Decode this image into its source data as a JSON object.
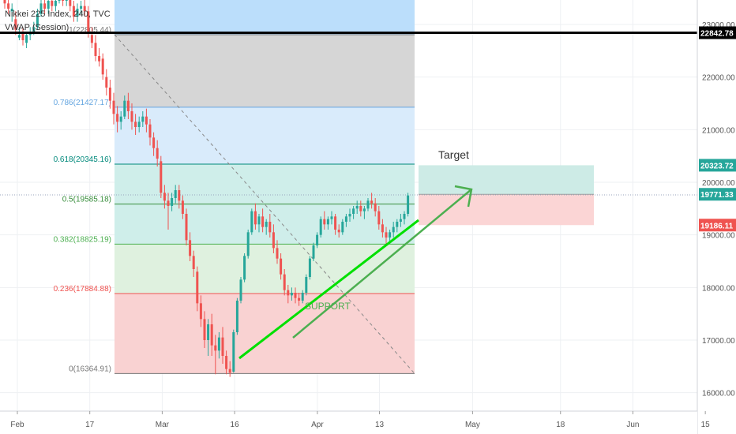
{
  "header": {
    "symbol_line": "Nikkei 225 Index, 240, TVC",
    "indicator": "VWAP (Session)"
  },
  "colors": {
    "up": "#26a69a",
    "down": "#ef5350",
    "support_line": "#00e000",
    "arrow": "#4caf50",
    "resistance_line": "#000000",
    "fib_zone_top": "#bbdefb",
    "fib_zone_grey": "#d6d6d6",
    "fib_zone_blue": "#d9ebfb",
    "fib_zone_teal": "#cfeeea",
    "fib_zone_green": "#dff1df",
    "fib_zone_red": "#f9d2d2",
    "target_box": "#cdebe6",
    "stop_box": "#fbd5d5"
  },
  "chart_data": {
    "type": "candlestick",
    "y_axis": {
      "range": [
        15650,
        23450
      ],
      "ticks": [
        16000,
        17000,
        18000,
        19000,
        20000,
        21000,
        22000,
        23000
      ],
      "tick_labels": [
        "16000.00",
        "17000.00",
        "18000.00",
        "19000.00",
        "20000.00",
        "21000.00",
        "22000.00",
        "23000.00"
      ]
    },
    "x_axis": {
      "tick_labels": [
        "Feb",
        "17",
        "Mar",
        "16",
        "Apr",
        "13",
        "May",
        "18",
        "Jun",
        "15"
      ],
      "tick_dates": [
        "2020-02-03",
        "2020-02-17",
        "2020-03-02",
        "2020-03-16",
        "2020-04-01",
        "2020-04-13",
        "2020-05-01",
        "2020-05-18",
        "2020-06-01",
        "2020-06-15"
      ]
    },
    "price_labels": [
      {
        "text": "22842.78",
        "value": 22842.78,
        "style": "resistance"
      },
      {
        "text": "20323.72",
        "value": 20323.72,
        "style": "target"
      },
      {
        "text": "19771.33",
        "value": 19771.33,
        "style": "entry"
      },
      {
        "text": "19186.11",
        "value": 19186.11,
        "style": "stop"
      }
    ],
    "horizontal_line": {
      "value": 22842.78
    },
    "fibonacci": [
      {
        "label": "1(22805.44)",
        "ratio": 1,
        "value": 22805.44
      },
      {
        "label": "0.786(21427.17)",
        "ratio": 0.786,
        "value": 21427.17
      },
      {
        "label": "0.618(20345.16)",
        "ratio": 0.618,
        "value": 20345.16
      },
      {
        "label": "0.5(19585.18)",
        "ratio": 0.5,
        "value": 19585.18
      },
      {
        "label": "0.382(18825.19)",
        "ratio": 0.382,
        "value": 18825.19
      },
      {
        "label": "0.236(17884.88)",
        "ratio": 0.236,
        "value": 17884.88
      },
      {
        "label": "0(16364.91)",
        "ratio": 0,
        "value": 16364.91
      }
    ],
    "annotations": [
      {
        "text": "Target"
      },
      {
        "text": "SUPPORT"
      }
    ],
    "candles": [
      [
        23500,
        23650,
        23400,
        23300
      ],
      [
        23400,
        23700,
        23300,
        23200
      ],
      [
        23250,
        23400,
        23300,
        23050
      ],
      [
        23100,
        23250,
        22900,
        22800
      ],
      [
        22750,
        22950,
        22800,
        22700
      ],
      [
        22850,
        22950,
        22700,
        22600
      ],
      [
        22650,
        22850,
        22800,
        22550
      ],
      [
        22800,
        22950,
        22850,
        22700
      ],
      [
        22850,
        23050,
        22950,
        22800
      ],
      [
        22950,
        23300,
        23200,
        22900
      ],
      [
        23200,
        23500,
        23400,
        23150
      ],
      [
        23400,
        23550,
        23300,
        23200
      ],
      [
        23300,
        23500,
        23450,
        23200
      ],
      [
        23450,
        23600,
        23350,
        23250
      ],
      [
        23350,
        23500,
        23450,
        23250
      ],
      [
        23450,
        23650,
        23550,
        23400
      ],
      [
        23550,
        23700,
        23450,
        23350
      ],
      [
        23450,
        23600,
        23500,
        23350
      ],
      [
        23500,
        23600,
        23350,
        23250
      ],
      [
        23350,
        23450,
        23150,
        23050
      ],
      [
        23150,
        23400,
        23300,
        23050
      ],
      [
        23300,
        23450,
        23350,
        23200
      ],
      [
        23350,
        23500,
        23250,
        23150
      ],
      [
        23250,
        23350,
        22850,
        22750
      ],
      [
        22800,
        22950,
        22650,
        22550
      ],
      [
        22650,
        22800,
        22400,
        22300
      ],
      [
        22400,
        22550,
        22300,
        22200
      ],
      [
        22350,
        22450,
        22050,
        21950
      ],
      [
        22000,
        22150,
        21800,
        21650
      ],
      [
        21800,
        21950,
        21550,
        21400
      ],
      [
        21550,
        21700,
        21300,
        21100
      ],
      [
        21300,
        21450,
        21150,
        20950
      ],
      [
        21150,
        21350,
        21250,
        21000
      ],
      [
        21250,
        21650,
        21550,
        21200
      ],
      [
        21550,
        21700,
        21350,
        21200
      ],
      [
        21350,
        21500,
        21150,
        21000
      ],
      [
        21150,
        21300,
        21050,
        20900
      ],
      [
        21050,
        21250,
        21150,
        20950
      ],
      [
        21150,
        21350,
        21250,
        21050
      ],
      [
        21250,
        21400,
        21100,
        20950
      ],
      [
        21100,
        21200,
        20850,
        20700
      ],
      [
        20850,
        20950,
        20650,
        20500
      ],
      [
        20650,
        20800,
        20450,
        20300
      ],
      [
        20400,
        20500,
        19800,
        19700
      ],
      [
        19800,
        19950,
        19650,
        19500
      ],
      [
        19650,
        19800,
        19550,
        19100
      ],
      [
        19550,
        19800,
        19700,
        19450
      ],
      [
        19700,
        19950,
        19850,
        19600
      ],
      [
        19850,
        19950,
        19650,
        19500
      ],
      [
        19650,
        19750,
        19400,
        19300
      ],
      [
        19400,
        19500,
        18900,
        18800
      ],
      [
        18900,
        19050,
        18600,
        18500
      ],
      [
        18600,
        18700,
        18350,
        18200
      ],
      [
        18300,
        18400,
        17700,
        17550
      ],
      [
        17700,
        17850,
        17400,
        17250
      ],
      [
        17400,
        17550,
        17000,
        16850
      ],
      [
        17000,
        17400,
        17300,
        16700
      ],
      [
        17300,
        17500,
        16900,
        16700
      ],
      [
        16900,
        17100,
        16800,
        16350
      ],
      [
        16800,
        17150,
        17050,
        16650
      ],
      [
        17050,
        17250,
        16700,
        16550
      ],
      [
        16700,
        16800,
        16450,
        16350
      ],
      [
        16450,
        16600,
        16380,
        16300
      ],
      [
        16400,
        17200,
        17150,
        16380
      ],
      [
        17150,
        17800,
        17750,
        17100
      ],
      [
        17750,
        18200,
        18150,
        17700
      ],
      [
        18150,
        18650,
        18600,
        18100
      ],
      [
        18600,
        19100,
        19050,
        18550
      ],
      [
        19050,
        19500,
        19450,
        19000
      ],
      [
        19450,
        19600,
        19200,
        19100
      ],
      [
        19200,
        19400,
        19350,
        19050
      ],
      [
        19350,
        19500,
        19150,
        19050
      ],
      [
        19150,
        19300,
        19250,
        19000
      ],
      [
        19250,
        19400,
        19050,
        18950
      ],
      [
        19050,
        19200,
        18750,
        18650
      ],
      [
        18750,
        18900,
        18550,
        18450
      ],
      [
        18550,
        18650,
        18250,
        18150
      ],
      [
        18250,
        18350,
        17950,
        17850
      ],
      [
        17950,
        18050,
        17850,
        17700
      ],
      [
        17850,
        18000,
        17900,
        17750
      ],
      [
        17900,
        18000,
        17800,
        17700
      ],
      [
        17800,
        17900,
        17750,
        17650
      ],
      [
        17750,
        17950,
        17900,
        17700
      ],
      [
        17900,
        18250,
        18200,
        17850
      ],
      [
        18200,
        18600,
        18550,
        18150
      ],
      [
        18550,
        18850,
        18800,
        18500
      ],
      [
        18800,
        19050,
        19000,
        18750
      ],
      [
        19000,
        19350,
        19300,
        18950
      ],
      [
        19300,
        19450,
        19200,
        19100
      ],
      [
        19200,
        19350,
        19300,
        19100
      ],
      [
        19300,
        19450,
        19350,
        19200
      ],
      [
        19350,
        19400,
        19100,
        19000
      ],
      [
        19100,
        19200,
        19050,
        18950
      ],
      [
        19050,
        19300,
        19250,
        19000
      ],
      [
        19250,
        19400,
        19350,
        19150
      ],
      [
        19350,
        19500,
        19400,
        19250
      ],
      [
        19400,
        19550,
        19500,
        19300
      ],
      [
        19500,
        19650,
        19550,
        19400
      ],
      [
        19550,
        19650,
        19450,
        19350
      ],
      [
        19450,
        19550,
        19500,
        19300
      ],
      [
        19500,
        19700,
        19650,
        19450
      ],
      [
        19650,
        19800,
        19600,
        19500
      ],
      [
        19600,
        19700,
        19450,
        19350
      ],
      [
        19450,
        19550,
        19200,
        19100
      ],
      [
        19200,
        19300,
        19050,
        18950
      ],
      [
        19050,
        19150,
        18950,
        18800
      ],
      [
        18950,
        19100,
        19050,
        18850
      ],
      [
        19050,
        19250,
        19150,
        18950
      ],
      [
        19150,
        19300,
        19250,
        19050
      ],
      [
        19250,
        19400,
        19300,
        19150
      ],
      [
        19300,
        19450,
        19400,
        19200
      ],
      [
        19400,
        19800,
        19750,
        19350
      ]
    ]
  }
}
